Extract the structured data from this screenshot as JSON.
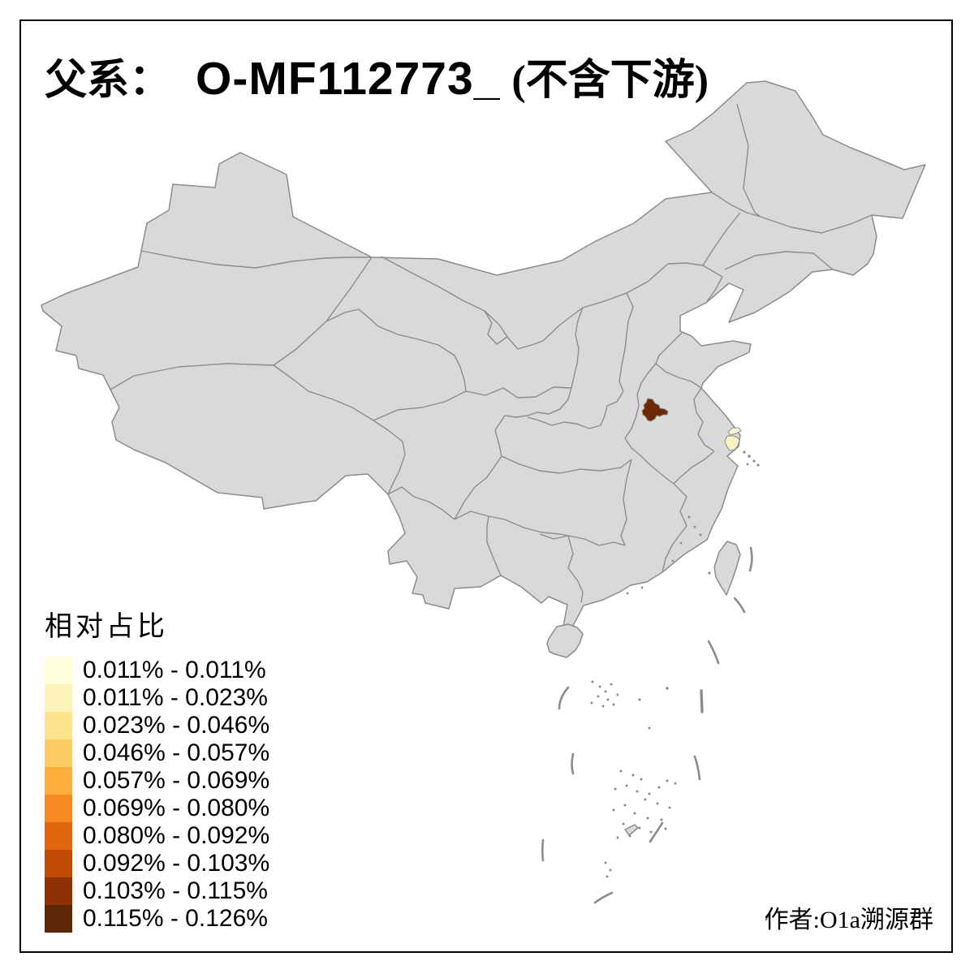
{
  "title": {
    "prefix": "父系：",
    "haplogroup": "O-MF112773_",
    "suffix": "(不含下游)"
  },
  "legend": {
    "title": "相对占比",
    "items": [
      {
        "range": "0.011% - 0.011%",
        "color": "#FFFFDC"
      },
      {
        "range": "0.011% - 0.023%",
        "color": "#FCF3B8"
      },
      {
        "range": "0.023% - 0.046%",
        "color": "#FDE38D"
      },
      {
        "range": "0.046% - 0.057%",
        "color": "#FDCC63"
      },
      {
        "range": "0.057% - 0.069%",
        "color": "#FCAD3A"
      },
      {
        "range": "0.069% - 0.080%",
        "color": "#F68921"
      },
      {
        "range": "0.080% - 0.092%",
        "color": "#E0660D"
      },
      {
        "range": "0.092% - 0.103%",
        "color": "#C14A02"
      },
      {
        "range": "0.103% - 0.115%",
        "color": "#8E3104"
      },
      {
        "range": "0.115% - 0.126%",
        "color": "#5F2606"
      }
    ]
  },
  "attribution": "作者:O1a溯源群",
  "map": {
    "base_fill": "#D9D9D9",
    "border_color": "#8C8C8C",
    "background": "#FFFFFF",
    "regions": [
      {
        "name": "darkest-prefecture",
        "color": "#6E2808"
      },
      {
        "name": "light-prefecture-north",
        "color": "#FCF7D0"
      },
      {
        "name": "light-prefecture-south",
        "color": "#F9F2C4"
      }
    ]
  }
}
